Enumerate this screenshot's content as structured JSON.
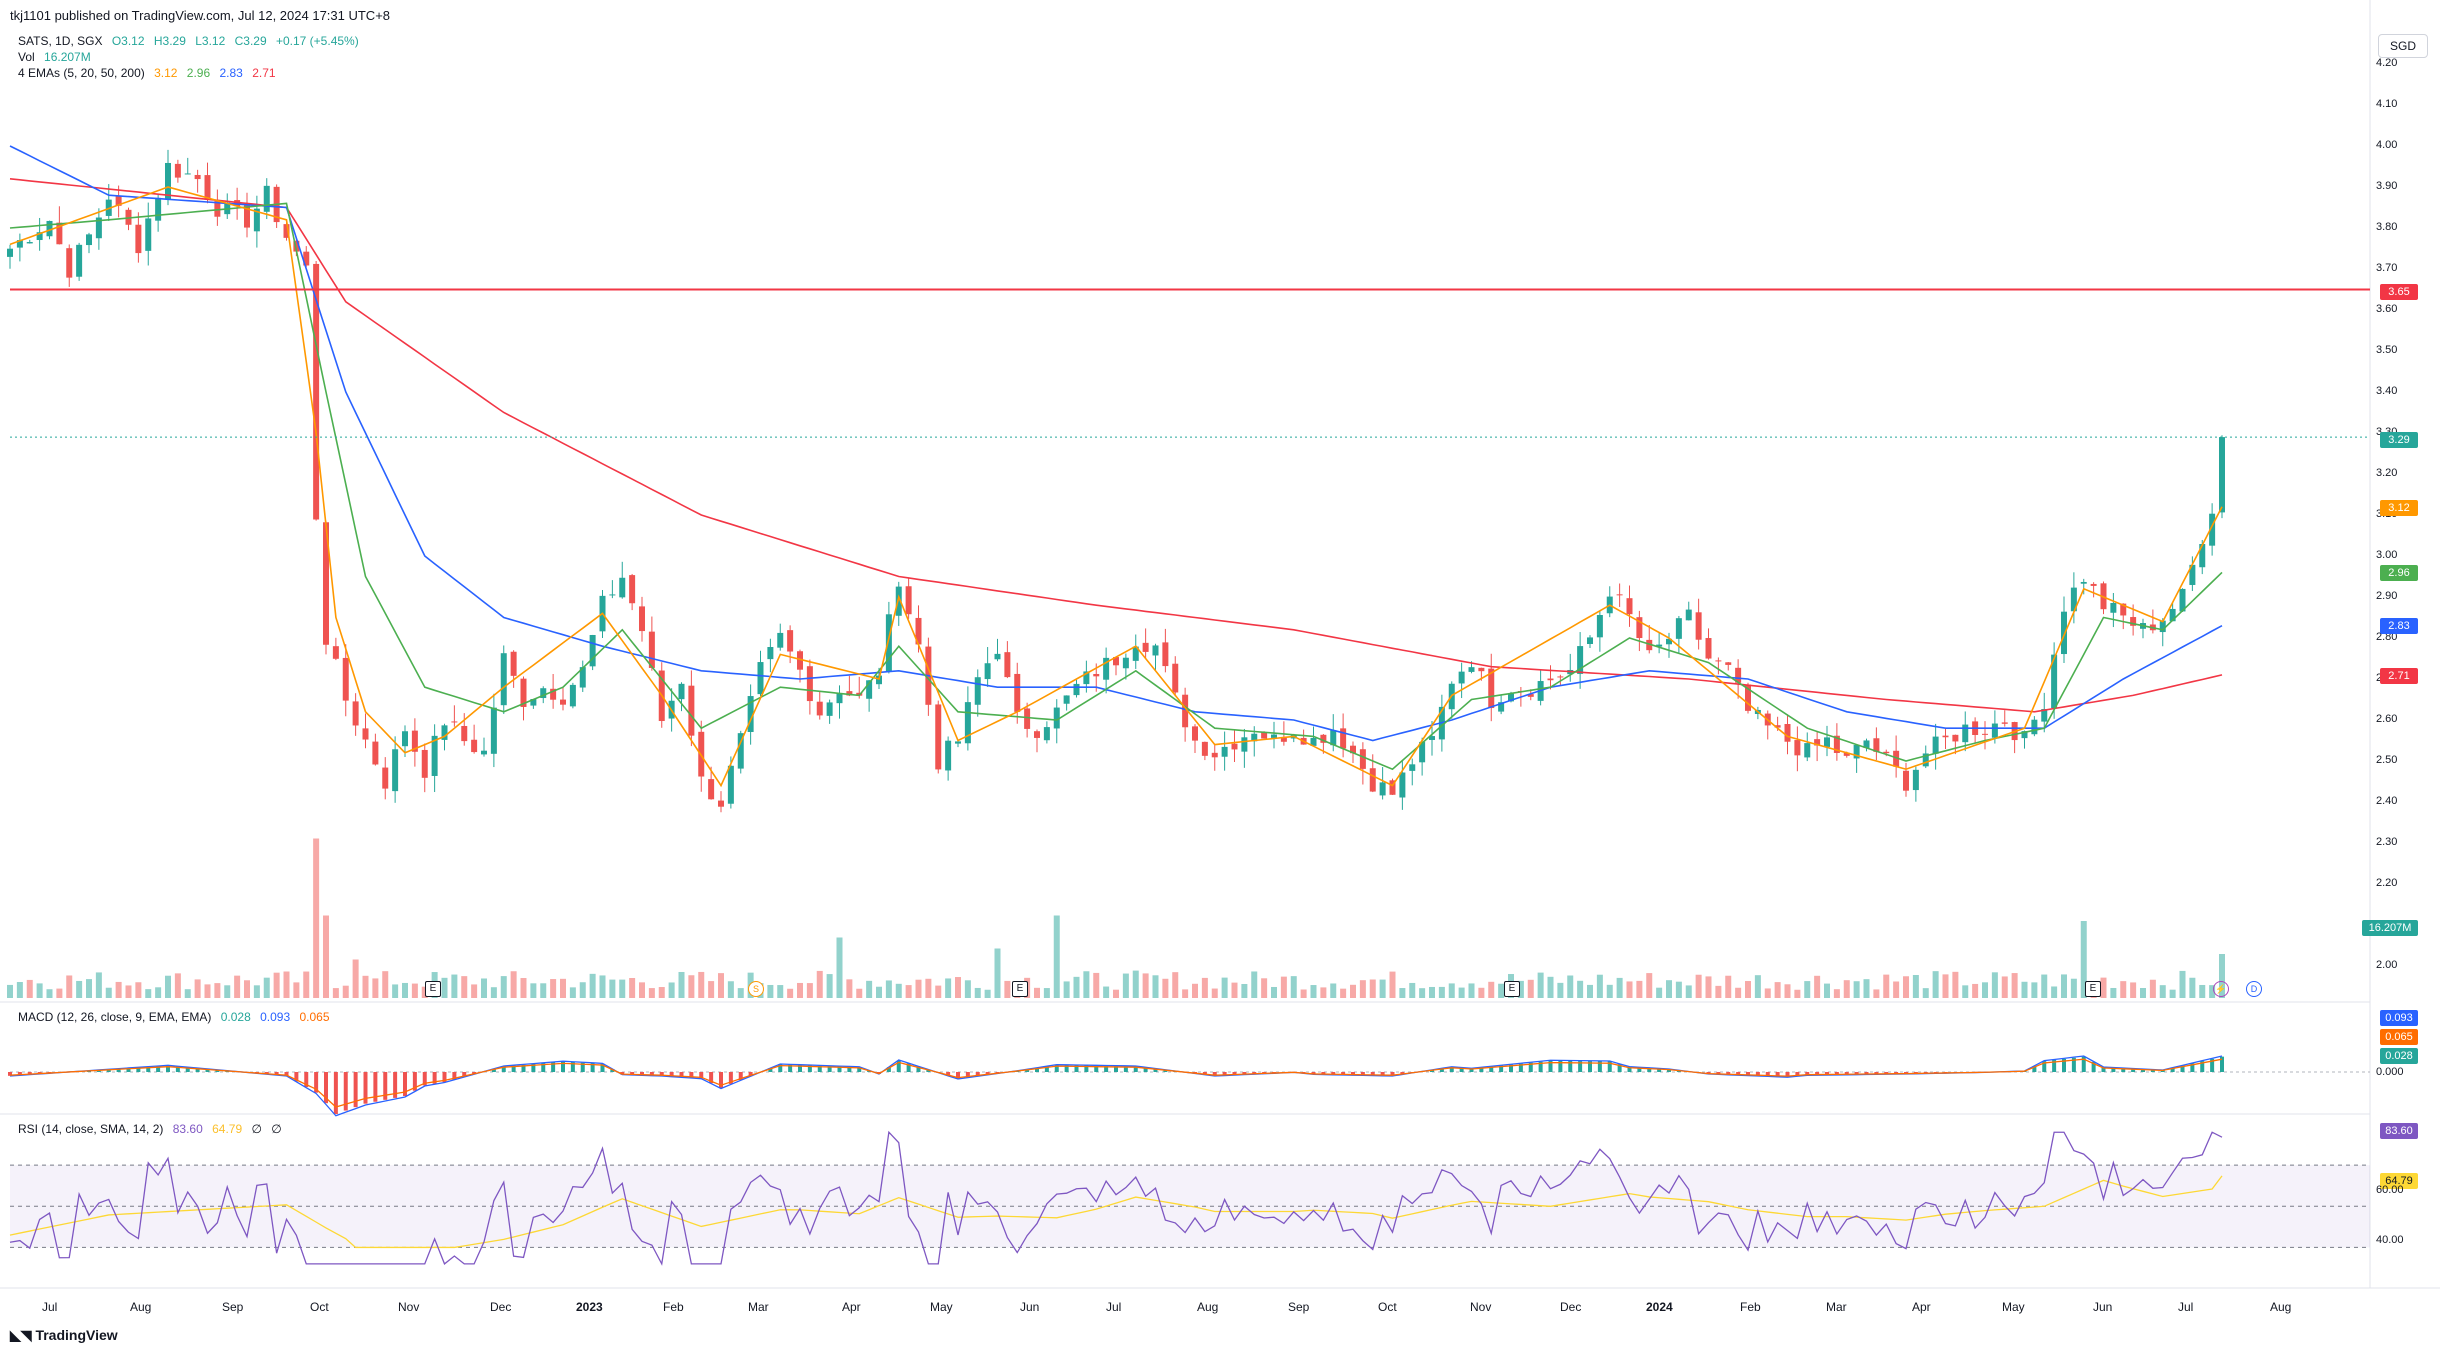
{
  "publish_line": "tkj1101 published on TradingView.com, Jul 12, 2024 17:31 UTC+8",
  "legend": {
    "symbol": "SATS, 1D, SGX",
    "open": "O3.12",
    "high": "H3.29",
    "low": "L3.12",
    "close": "C3.29",
    "change": "+0.17 (+5.45%)",
    "vol_label": "Vol",
    "vol_value": "16.207M",
    "ema_label": "4 EMAs (5, 20, 50, 200)",
    "ema_values": [
      "3.12",
      "2.96",
      "2.83",
      "2.71"
    ]
  },
  "macd_legend": {
    "label": "MACD (12, 26, close, 9, EMA, EMA)",
    "values": [
      "0.028",
      "0.093",
      "0.065"
    ]
  },
  "rsi_legend": {
    "label": "RSI (14, close, SMA, 14, 2)",
    "values": [
      "83.60",
      "64.79",
      "∅",
      "∅"
    ]
  },
  "currency": "SGD",
  "price_axis": [
    "4.20",
    "4.10",
    "4.00",
    "3.90",
    "3.80",
    "3.70",
    "3.60",
    "3.50",
    "3.40",
    "3.30",
    "3.20",
    "3.10",
    "3.00",
    "2.90",
    "2.80",
    "2.70",
    "2.60",
    "2.50",
    "2.40",
    "2.30",
    "2.20",
    "2.00"
  ],
  "price_tags": {
    "resistance": "3.65",
    "last": "3.29",
    "ema5": "3.12",
    "ema20": "2.96",
    "ema50": "2.83",
    "ema200": "2.71",
    "volume": "16.207M",
    "macd": "0.093",
    "signal": "0.065",
    "hist": "0.028",
    "macd_zero": "0.000",
    "rsi": "83.60",
    "rsi_ma": "64.79",
    "rsi_axis_60": "60.00",
    "rsi_axis_40": "40.00"
  },
  "time_axis": [
    {
      "label": "Jul",
      "bold": false
    },
    {
      "label": "Aug",
      "bold": false
    },
    {
      "label": "Sep",
      "bold": false
    },
    {
      "label": "Oct",
      "bold": false
    },
    {
      "label": "Nov",
      "bold": false
    },
    {
      "label": "Dec",
      "bold": false
    },
    {
      "label": "2023",
      "bold": true
    },
    {
      "label": "Feb",
      "bold": false
    },
    {
      "label": "Mar",
      "bold": false
    },
    {
      "label": "Apr",
      "bold": false
    },
    {
      "label": "May",
      "bold": false
    },
    {
      "label": "Jun",
      "bold": false
    },
    {
      "label": "Jul",
      "bold": false
    },
    {
      "label": "Aug",
      "bold": false
    },
    {
      "label": "Sep",
      "bold": false
    },
    {
      "label": "Oct",
      "bold": false
    },
    {
      "label": "Nov",
      "bold": false
    },
    {
      "label": "Dec",
      "bold": false
    },
    {
      "label": "2024",
      "bold": true
    },
    {
      "label": "Feb",
      "bold": false
    },
    {
      "label": "Mar",
      "bold": false
    },
    {
      "label": "Apr",
      "bold": false
    },
    {
      "label": "May",
      "bold": false
    },
    {
      "label": "Jun",
      "bold": false
    },
    {
      "label": "Jul",
      "bold": false
    },
    {
      "label": "Aug",
      "bold": false
    }
  ],
  "events": [
    "E",
    "S",
    "E",
    "E",
    "E"
  ],
  "event_icons": [
    "lightning-icon",
    "dividend-icon"
  ],
  "brand": "TradingView",
  "colors": {
    "up": "#26a69a",
    "down": "#ef5350",
    "ema5": "#ff9800",
    "ema20": "#4caf50",
    "ema50": "#2962ff",
    "ema200": "#f23645",
    "resistance": "#f23645",
    "rsi": "#7e57c2",
    "rsi_ma": "#fdd835"
  },
  "chart_data": {
    "type": "candlestick",
    "symbol": "SATS",
    "resistance_level": 3.65,
    "last_close": 3.29,
    "price_path": [
      [
        0,
        3.75
      ],
      [
        4,
        3.82
      ],
      [
        6,
        3.7
      ],
      [
        8,
        3.78
      ],
      [
        10,
        3.88
      ],
      [
        13,
        3.76
      ],
      [
        16,
        3.95
      ],
      [
        19,
        3.92
      ],
      [
        21,
        3.85
      ],
      [
        24,
        3.82
      ],
      [
        26,
        3.88
      ],
      [
        28,
        3.78
      ],
      [
        30,
        3.7
      ],
      [
        31,
        3.1
      ],
      [
        32,
        2.8
      ],
      [
        34,
        2.65
      ],
      [
        36,
        2.55
      ],
      [
        38,
        2.45
      ],
      [
        40,
        2.58
      ],
      [
        42,
        2.48
      ],
      [
        44,
        2.6
      ],
      [
        46,
        2.55
      ],
      [
        48,
        2.52
      ],
      [
        50,
        2.75
      ],
      [
        52,
        2.65
      ],
      [
        54,
        2.68
      ],
      [
        56,
        2.66
      ],
      [
        58,
        2.72
      ],
      [
        60,
        2.88
      ],
      [
        62,
        2.95
      ],
      [
        64,
        2.82
      ],
      [
        66,
        2.6
      ],
      [
        68,
        2.7
      ],
      [
        70,
        2.45
      ],
      [
        72,
        2.4
      ],
      [
        74,
        2.55
      ],
      [
        76,
        2.72
      ],
      [
        78,
        2.8
      ],
      [
        80,
        2.72
      ],
      [
        82,
        2.62
      ],
      [
        84,
        2.68
      ],
      [
        86,
        2.65
      ],
      [
        88,
        2.72
      ],
      [
        90,
        2.95
      ],
      [
        92,
        2.78
      ],
      [
        94,
        2.5
      ],
      [
        96,
        2.55
      ],
      [
        98,
        2.7
      ],
      [
        100,
        2.78
      ],
      [
        102,
        2.6
      ],
      [
        104,
        2.58
      ],
      [
        106,
        2.62
      ],
      [
        108,
        2.68
      ],
      [
        110,
        2.72
      ],
      [
        112,
        2.75
      ],
      [
        114,
        2.8
      ],
      [
        116,
        2.78
      ],
      [
        118,
        2.65
      ],
      [
        120,
        2.55
      ],
      [
        122,
        2.52
      ],
      [
        124,
        2.55
      ],
      [
        126,
        2.58
      ],
      [
        128,
        2.55
      ],
      [
        130,
        2.58
      ],
      [
        132,
        2.55
      ],
      [
        134,
        2.58
      ],
      [
        136,
        2.52
      ],
      [
        138,
        2.45
      ],
      [
        140,
        2.42
      ],
      [
        142,
        2.5
      ],
      [
        144,
        2.55
      ],
      [
        146,
        2.7
      ],
      [
        148,
        2.75
      ],
      [
        150,
        2.65
      ],
      [
        152,
        2.68
      ],
      [
        154,
        2.68
      ],
      [
        156,
        2.7
      ],
      [
        158,
        2.72
      ],
      [
        160,
        2.8
      ],
      [
        162,
        2.92
      ],
      [
        164,
        2.85
      ],
      [
        166,
        2.75
      ],
      [
        168,
        2.8
      ],
      [
        170,
        2.85
      ],
      [
        172,
        2.75
      ],
      [
        174,
        2.72
      ],
      [
        176,
        2.62
      ],
      [
        178,
        2.58
      ],
      [
        180,
        2.55
      ],
      [
        182,
        2.52
      ],
      [
        184,
        2.55
      ],
      [
        186,
        2.5
      ],
      [
        188,
        2.55
      ],
      [
        190,
        2.5
      ],
      [
        192,
        2.45
      ],
      [
        194,
        2.52
      ],
      [
        196,
        2.55
      ],
      [
        198,
        2.58
      ],
      [
        200,
        2.58
      ],
      [
        202,
        2.6
      ],
      [
        204,
        2.55
      ],
      [
        206,
        2.65
      ],
      [
        208,
        2.88
      ],
      [
        210,
        2.95
      ],
      [
        212,
        2.88
      ],
      [
        214,
        2.85
      ],
      [
        216,
        2.82
      ],
      [
        218,
        2.85
      ],
      [
        220,
        2.9
      ],
      [
        222,
        3.05
      ],
      [
        223,
        3.12
      ],
      [
        224,
        3.29
      ]
    ],
    "ema200_path": [
      [
        0,
        3.92
      ],
      [
        28,
        3.85
      ],
      [
        34,
        3.62
      ],
      [
        50,
        3.35
      ],
      [
        70,
        3.1
      ],
      [
        90,
        2.95
      ],
      [
        110,
        2.88
      ],
      [
        130,
        2.82
      ],
      [
        150,
        2.73
      ],
      [
        170,
        2.7
      ],
      [
        190,
        2.65
      ],
      [
        205,
        2.62
      ],
      [
        215,
        2.66
      ],
      [
        224,
        2.71
      ]
    ],
    "ema50_path": [
      [
        0,
        4.0
      ],
      [
        10,
        3.88
      ],
      [
        28,
        3.85
      ],
      [
        34,
        3.4
      ],
      [
        42,
        3.0
      ],
      [
        50,
        2.85
      ],
      [
        60,
        2.78
      ],
      [
        70,
        2.72
      ],
      [
        80,
        2.7
      ],
      [
        90,
        2.72
      ],
      [
        100,
        2.68
      ],
      [
        110,
        2.68
      ],
      [
        120,
        2.62
      ],
      [
        130,
        2.6
      ],
      [
        138,
        2.55
      ],
      [
        146,
        2.6
      ],
      [
        156,
        2.68
      ],
      [
        166,
        2.72
      ],
      [
        176,
        2.7
      ],
      [
        186,
        2.62
      ],
      [
        196,
        2.58
      ],
      [
        206,
        2.58
      ],
      [
        214,
        2.7
      ],
      [
        224,
        2.83
      ]
    ],
    "ema20_path": [
      [
        0,
        3.8
      ],
      [
        10,
        3.82
      ],
      [
        28,
        3.86
      ],
      [
        32,
        3.4
      ],
      [
        36,
        2.95
      ],
      [
        42,
        2.68
      ],
      [
        50,
        2.62
      ],
      [
        56,
        2.68
      ],
      [
        62,
        2.82
      ],
      [
        70,
        2.58
      ],
      [
        78,
        2.68
      ],
      [
        86,
        2.66
      ],
      [
        90,
        2.78
      ],
      [
        96,
        2.62
      ],
      [
        106,
        2.6
      ],
      [
        114,
        2.72
      ],
      [
        122,
        2.58
      ],
      [
        132,
        2.56
      ],
      [
        140,
        2.48
      ],
      [
        148,
        2.65
      ],
      [
        156,
        2.68
      ],
      [
        164,
        2.8
      ],
      [
        172,
        2.74
      ],
      [
        182,
        2.58
      ],
      [
        192,
        2.5
      ],
      [
        200,
        2.55
      ],
      [
        206,
        2.58
      ],
      [
        212,
        2.85
      ],
      [
        218,
        2.82
      ],
      [
        224,
        2.96
      ]
    ],
    "ema5_path": [
      [
        0,
        3.76
      ],
      [
        16,
        3.9
      ],
      [
        28,
        3.82
      ],
      [
        31,
        3.3
      ],
      [
        33,
        2.85
      ],
      [
        36,
        2.62
      ],
      [
        40,
        2.52
      ],
      [
        44,
        2.56
      ],
      [
        50,
        2.68
      ],
      [
        60,
        2.86
      ],
      [
        66,
        2.66
      ],
      [
        72,
        2.44
      ],
      [
        78,
        2.76
      ],
      [
        88,
        2.7
      ],
      [
        90,
        2.9
      ],
      [
        96,
        2.55
      ],
      [
        102,
        2.62
      ],
      [
        114,
        2.78
      ],
      [
        122,
        2.54
      ],
      [
        130,
        2.56
      ],
      [
        140,
        2.44
      ],
      [
        146,
        2.66
      ],
      [
        162,
        2.88
      ],
      [
        168,
        2.8
      ],
      [
        180,
        2.56
      ],
      [
        192,
        2.48
      ],
      [
        204,
        2.58
      ],
      [
        210,
        2.92
      ],
      [
        218,
        2.84
      ],
      [
        224,
        3.12
      ]
    ]
  }
}
